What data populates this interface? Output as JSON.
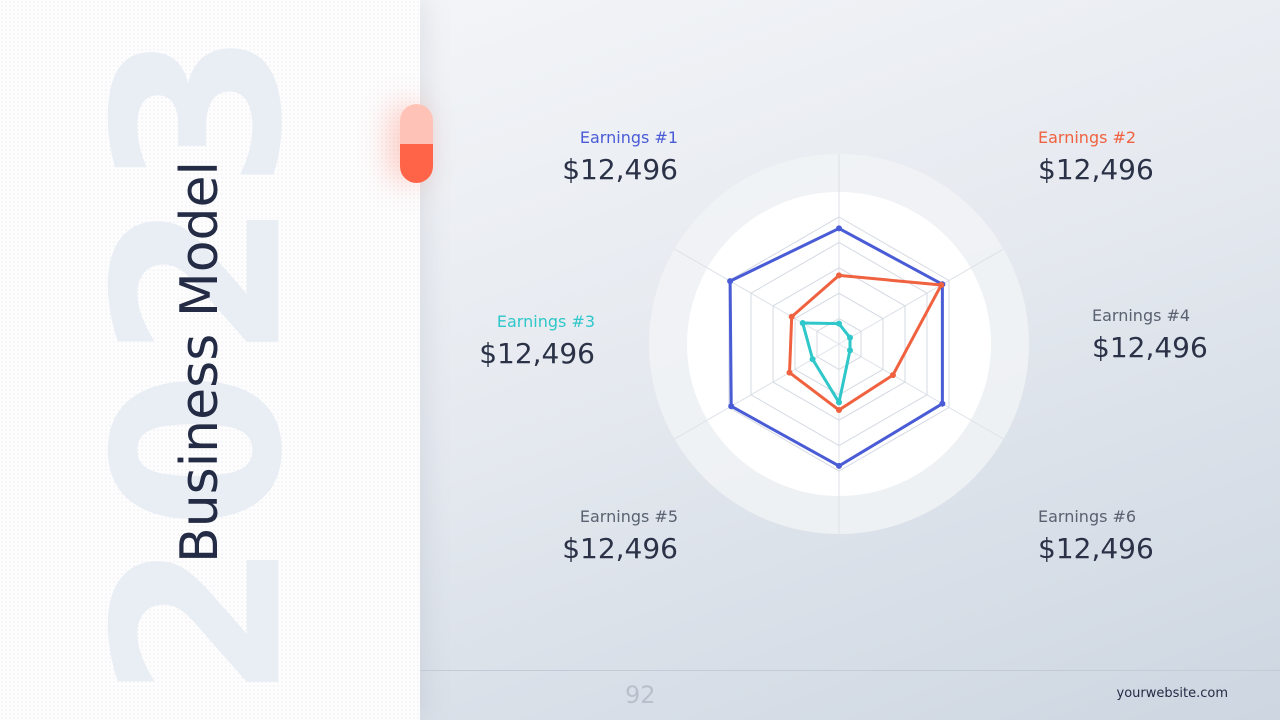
{
  "slide": {
    "title": "Business Model",
    "year": "2023",
    "page": "92",
    "website": "yourwebsite.com",
    "cards": [
      {
        "label": "Earnings #1",
        "value": "$12,496",
        "color": "#4a5bd6"
      },
      {
        "label": "Earnings #2",
        "value": "$12,496",
        "color": "#f0623f"
      },
      {
        "label": "Earnings #3",
        "value": "$12,496",
        "color": "#2fc7c9"
      },
      {
        "label": "Earnings #4",
        "value": "$12,496",
        "color": "#5a6170"
      },
      {
        "label": "Earnings #5",
        "value": "$12,496",
        "color": "#5a6170"
      },
      {
        "label": "Earnings #6",
        "value": "$12,496",
        "color": "#5a6170"
      }
    ]
  },
  "chart_data": {
    "type": "radar",
    "categories": [
      null,
      null,
      null,
      null,
      null,
      null
    ],
    "ylim": [
      0,
      100
    ],
    "yticks": [
      0,
      20,
      40,
      60,
      80,
      100
    ],
    "grid": true,
    "series": [
      {
        "color": "#4a5bd6",
        "values": [
          91,
          94,
          94,
          96,
          98,
          99
        ]
      },
      {
        "color": "#f0623f",
        "values": [
          54,
          93,
          49,
          52,
          45,
          43
        ]
      },
      {
        "color": "#2fc7c9",
        "values": [
          16,
          10,
          10,
          46,
          24,
          33
        ]
      }
    ]
  }
}
